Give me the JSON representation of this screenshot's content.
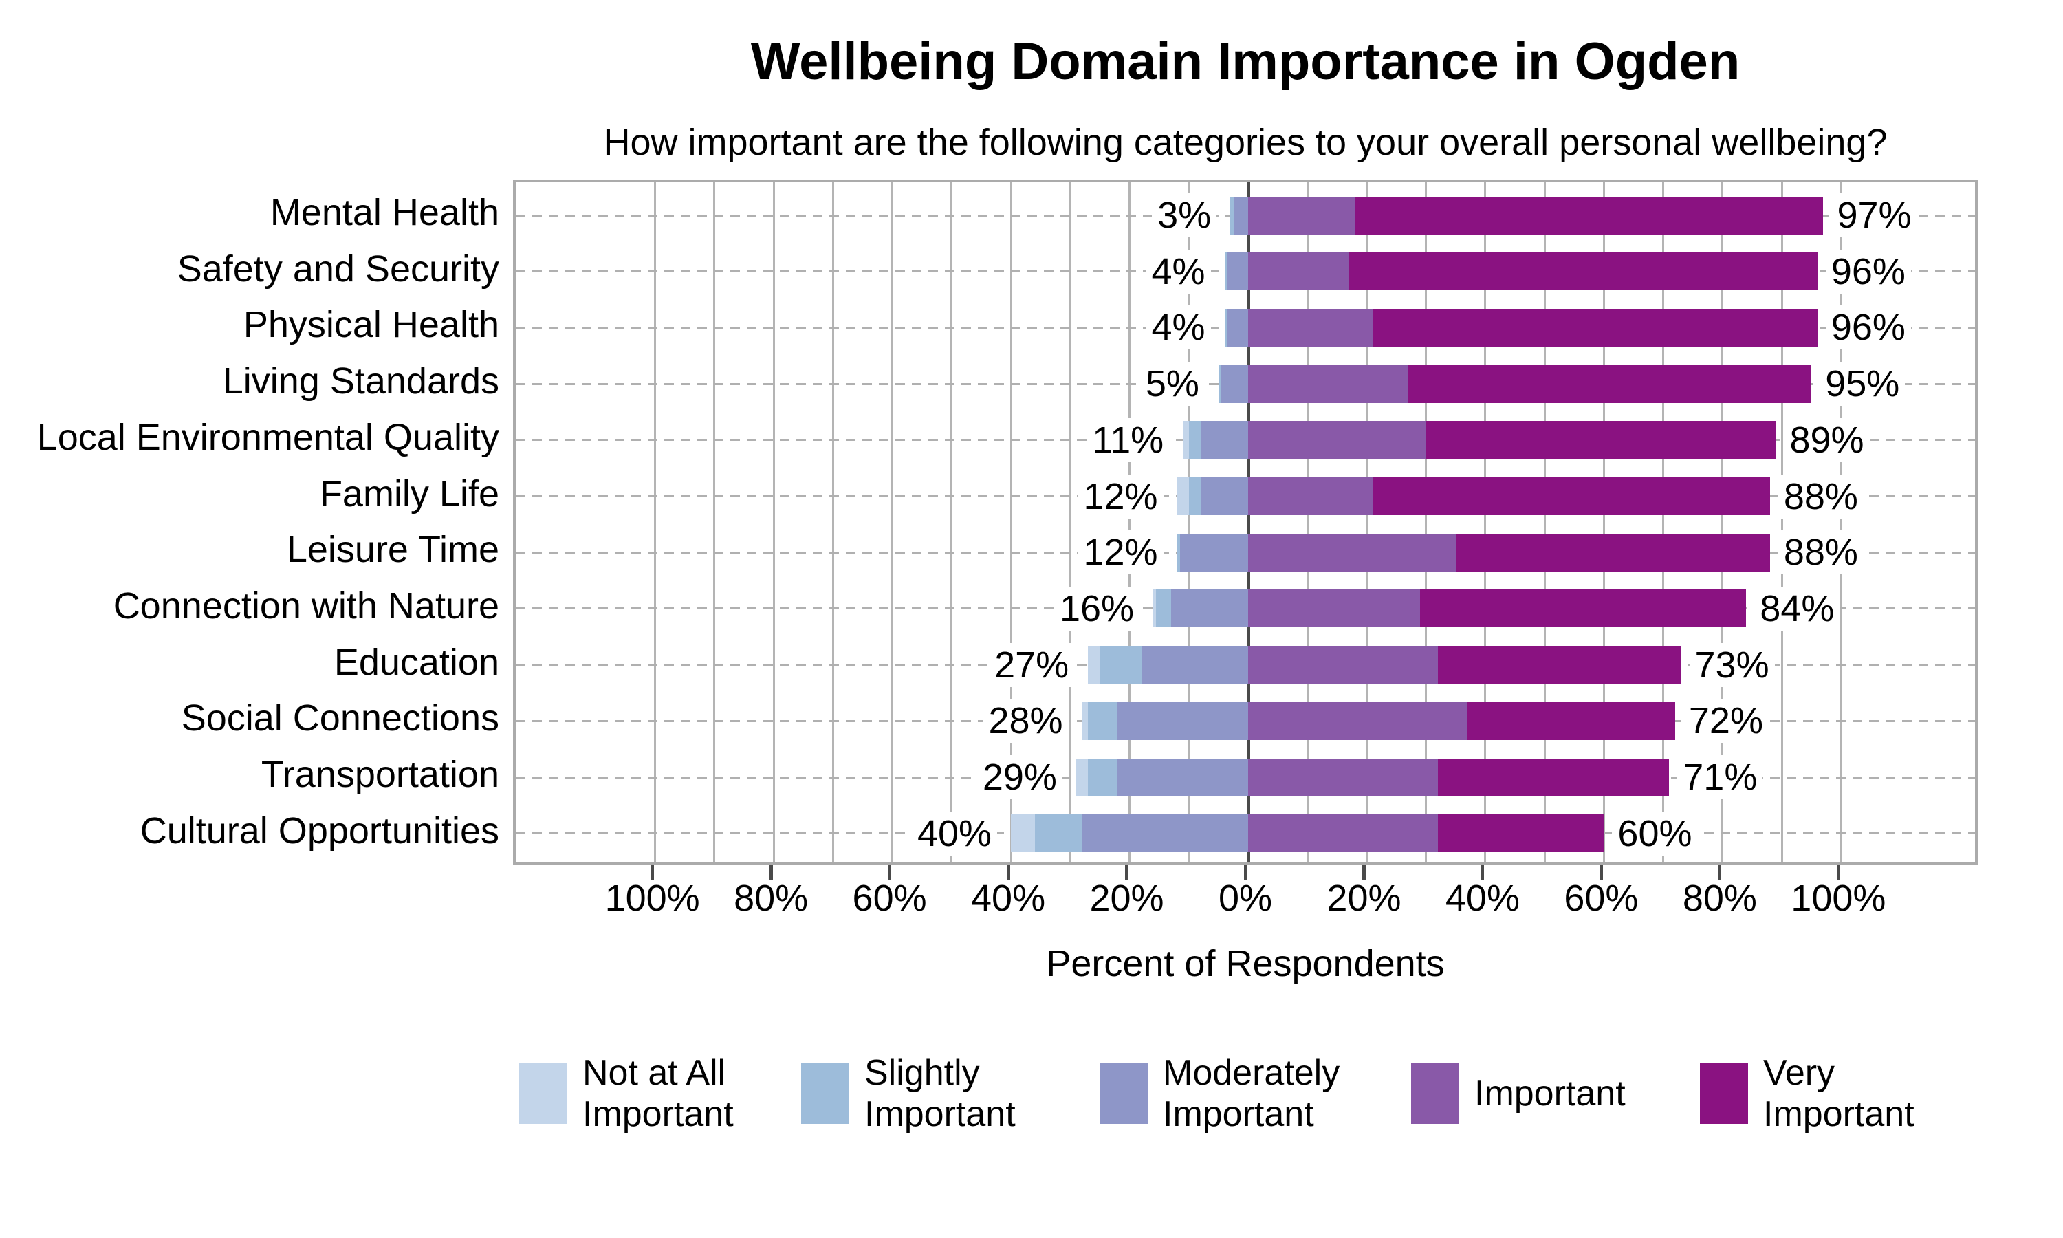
{
  "chart_data": {
    "type": "bar",
    "variant": "horizontal-diverging-stacked-likert",
    "title": "Wellbeing Domain Importance in Ogden",
    "subtitle": "How important are the following categories to your overall personal wellbeing?",
    "xlabel": "Percent of Respondents",
    "x_axis": {
      "tick_values": [
        -100,
        -80,
        -60,
        -40,
        -20,
        0,
        20,
        40,
        60,
        80,
        100
      ],
      "tick_labels": [
        "100%",
        "80%",
        "60%",
        "40%",
        "20%",
        "0%",
        "20%",
        "40%",
        "60%",
        "80%",
        "100%"
      ],
      "minor_gridline_step_pct": 10,
      "visible_range_pct": [
        -123.5,
        123.5
      ],
      "zero_line": true
    },
    "legend": [
      {
        "label": "Not at All Important",
        "lines": [
          "Not at All",
          "Important"
        ],
        "color": "#c3d5ea"
      },
      {
        "label": "Slightly Important",
        "lines": [
          "Slightly",
          "Important"
        ],
        "color": "#9dbcda"
      },
      {
        "label": "Moderately Important",
        "lines": [
          "Moderately",
          "Important"
        ],
        "color": "#8e96c8"
      },
      {
        "label": "Important",
        "lines": [
          "Important"
        ],
        "color": "#8959a8"
      },
      {
        "label": "Very Important",
        "lines": [
          "Very",
          "Important"
        ],
        "color": "#8a1281"
      }
    ],
    "series_order": [
      "Not at All Important",
      "Slightly Important",
      "Moderately Important",
      "Important",
      "Very Important"
    ],
    "rows": [
      {
        "category": "Mental Health",
        "left_label": "3%",
        "right_label": "97%",
        "values": [
          0,
          0.6,
          2.4,
          18,
          79
        ]
      },
      {
        "category": "Safety and Security",
        "left_label": "4%",
        "right_label": "96%",
        "values": [
          0,
          0.5,
          3.5,
          17,
          79
        ]
      },
      {
        "category": "Physical Health",
        "left_label": "4%",
        "right_label": "96%",
        "values": [
          0,
          0.5,
          3.5,
          21,
          75
        ]
      },
      {
        "category": "Living Standards",
        "left_label": "5%",
        "right_label": "95%",
        "values": [
          0,
          0.5,
          4.5,
          27,
          68
        ]
      },
      {
        "category": "Local Environmental Quality",
        "left_label": "11%",
        "right_label": "89%",
        "values": [
          1,
          2,
          8,
          30,
          59
        ]
      },
      {
        "category": "Family Life",
        "left_label": "12%",
        "right_label": "88%",
        "values": [
          2,
          2,
          8,
          21,
          67
        ]
      },
      {
        "category": "Leisure Time",
        "left_label": "12%",
        "right_label": "88%",
        "values": [
          0,
          0.5,
          11.5,
          35,
          53
        ]
      },
      {
        "category": "Connection with Nature",
        "left_label": "16%",
        "right_label": "84%",
        "values": [
          0.5,
          2.5,
          13,
          29,
          55
        ]
      },
      {
        "category": "Education",
        "left_label": "27%",
        "right_label": "73%",
        "values": [
          2,
          7,
          18,
          32,
          41
        ]
      },
      {
        "category": "Social Connections",
        "left_label": "28%",
        "right_label": "72%",
        "values": [
          1,
          5,
          22,
          37,
          35
        ]
      },
      {
        "category": "Transportation",
        "left_label": "29%",
        "right_label": "71%",
        "values": [
          2,
          5,
          22,
          32,
          39
        ]
      },
      {
        "category": "Cultural Opportunities",
        "left_label": "40%",
        "right_label": "60%",
        "values": [
          4,
          8,
          28,
          32,
          28
        ]
      }
    ],
    "colors": {
      "gridline": "#b4b4b4",
      "zero_line": "#4a4a4a",
      "plot_border": "#ababab",
      "row_dash": "#b0b0b0",
      "text": "#000000",
      "background": "#ffffff"
    },
    "layout_hints": {
      "legend_position": "bottom",
      "negative_side": "Not at All + Slightly + Moderately",
      "positive_side": "Important + Very Important"
    }
  }
}
